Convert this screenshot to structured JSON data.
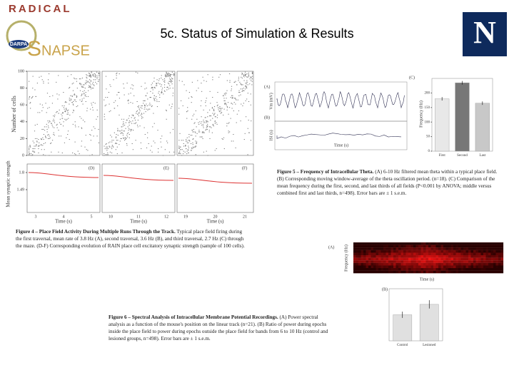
{
  "header": {
    "org": "RADICAL",
    "program": "NAPSE",
    "agency": "DARPA",
    "title": "5c. Status of Simulation & Results",
    "university": "N"
  },
  "fig4": {
    "panels": [
      "(A)",
      "(B)",
      "(C)"
    ],
    "lower_panels": [
      "(D)",
      "(E)",
      "(F)"
    ],
    "ylabel": "Number of cells",
    "yticks": [
      0,
      20,
      40,
      60,
      80,
      100
    ],
    "ylabel2": "Mean synaptic strength",
    "yticks2": [
      1.8,
      1.49
    ],
    "xticks": [
      [
        3,
        4,
        5
      ],
      [
        10,
        11,
        12
      ],
      [
        19,
        20,
        21
      ]
    ],
    "xlabel": "Time (s)",
    "caption": {
      "title": "Figure 4 – Place Field Activity During Multiple Runs Through the Track.",
      "text": "Typical place field firing during the first traversal, mean rate of 3.8 Hz (A), second traversal, 3.6 Hz (B), and third traversal, 2.7 Hz (C) through the maze. (D-F) Corresponding evolution of RAIN place cell excitatory synaptic strength (sample of 100 cells)."
    }
  },
  "fig5": {
    "trace_labels": [
      "(A)",
      "(B)"
    ],
    "trace_ylabels": [
      "Vm (mV)",
      "ISI (s)"
    ],
    "xlabel": "Time (s)",
    "bar_label": "(C)",
    "bar_ylabel": "Frequency (Hz)",
    "categories": [
      "First",
      "Second",
      "Last"
    ],
    "values": [
      180,
      235,
      165
    ],
    "errors": [
      6,
      6,
      6
    ],
    "ylim": [
      0,
      250
    ],
    "yticks": [
      0,
      50,
      100,
      150,
      200
    ],
    "caption": {
      "title": "Figure 5 – Frequency of Intracellular Theta.",
      "text": "(A) 6-10 Hz filtered mean theta within a typical place field. (B) Corresponding moving window-average of the theta oscillation period. (n=18). (C) Comparison of the mean frequency during the first, second, and last thirds of all fields (P<0.001 by ANOVA; middle versus combined first and last thirds, n=498). Error bars are ± 1 s.e.m."
    }
  },
  "fig6": {
    "spec_label": "(A)",
    "spec_ylabel": "Frequency (Hz)",
    "spec_xlabel": "Time (s)",
    "bar_label": "(B)",
    "categories": [
      "Control",
      "Lesioned"
    ],
    "values": [
      0.5,
      0.7
    ],
    "errors": [
      0.06,
      0.08
    ],
    "ylim": [
      0,
      1
    ],
    "caption": {
      "title": "Figure 6 – Spectral Analysis of Intracellular Membrane Potential Recordings.",
      "text": "(A) Power spectral analysis as a function of the mouse's position on the linear track (n=21). (B) Ratio of power during epochs inside the place field to power during epochs outside the place field for bands from 6 to 10 Hz (control and lesioned groups, n=498). Error bars are ± 1 s.e.m."
    }
  }
}
